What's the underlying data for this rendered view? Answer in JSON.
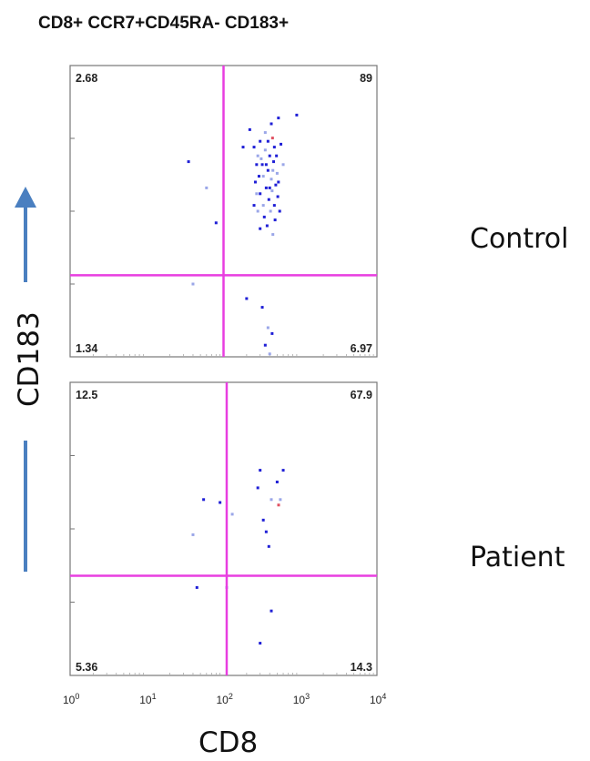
{
  "chart_data": {
    "type": "scatter",
    "title": "CD8+ CCR7+CD45RA- CD183+",
    "xlabel": "CD8",
    "ylabel": "CD183",
    "x_scale": "log",
    "xlim": [
      1,
      10000
    ],
    "x_ticks": [
      {
        "base": "10",
        "exp": "0"
      },
      {
        "base": "10",
        "exp": "1"
      },
      {
        "base": "10",
        "exp": "2"
      },
      {
        "base": "10",
        "exp": "3"
      },
      {
        "base": "10",
        "exp": "4"
      }
    ],
    "colors": {
      "gate": "#e83ee0",
      "arrow": "#4a7fc0",
      "event_main": "#1f1fd6",
      "event_light": "#9aa6e8",
      "event_red": "#e05060",
      "frame": "#777777"
    },
    "panels": [
      {
        "group": "Control",
        "gate_x": 100,
        "gate_y_fraction": 0.28,
        "quadrants": {
          "top_left": "2.68",
          "top_right": "89",
          "bottom_left": "1.34",
          "bottom_right": "6.97"
        },
        "points": [
          {
            "x": 220,
            "y": 0.78
          },
          {
            "x": 250,
            "y": 0.72
          },
          {
            "x": 280,
            "y": 0.69
          },
          {
            "x": 300,
            "y": 0.74
          },
          {
            "x": 320,
            "y": 0.66
          },
          {
            "x": 350,
            "y": 0.71
          },
          {
            "x": 380,
            "y": 0.64
          },
          {
            "x": 400,
            "y": 0.69
          },
          {
            "x": 420,
            "y": 0.61
          },
          {
            "x": 450,
            "y": 0.67
          },
          {
            "x": 480,
            "y": 0.59
          },
          {
            "x": 500,
            "y": 0.63
          },
          {
            "x": 260,
            "y": 0.6
          },
          {
            "x": 300,
            "y": 0.56
          },
          {
            "x": 330,
            "y": 0.62
          },
          {
            "x": 360,
            "y": 0.58
          },
          {
            "x": 390,
            "y": 0.54
          },
          {
            "x": 430,
            "y": 0.57
          },
          {
            "x": 460,
            "y": 0.52
          },
          {
            "x": 510,
            "y": 0.55
          },
          {
            "x": 280,
            "y": 0.5
          },
          {
            "x": 340,
            "y": 0.48
          },
          {
            "x": 370,
            "y": 0.45
          },
          {
            "x": 410,
            "y": 0.5
          },
          {
            "x": 470,
            "y": 0.47
          },
          {
            "x": 300,
            "y": 0.44
          },
          {
            "x": 440,
            "y": 0.42
          },
          {
            "x": 520,
            "y": 0.6
          },
          {
            "x": 270,
            "y": 0.66
          },
          {
            "x": 350,
            "y": 0.77
          },
          {
            "x": 420,
            "y": 0.8
          },
          {
            "x": 560,
            "y": 0.73
          },
          {
            "x": 600,
            "y": 0.66
          },
          {
            "x": 540,
            "y": 0.5
          },
          {
            "x": 250,
            "y": 0.52
          },
          {
            "x": 330,
            "y": 0.52
          },
          {
            "x": 380,
            "y": 0.74
          },
          {
            "x": 460,
            "y": 0.72
          },
          {
            "x": 310,
            "y": 0.68
          },
          {
            "x": 490,
            "y": 0.69
          },
          {
            "x": 290,
            "y": 0.62
          },
          {
            "x": 440,
            "y": 0.64
          },
          {
            "x": 360,
            "y": 0.66
          },
          {
            "x": 400,
            "y": 0.58
          },
          {
            "x": 270,
            "y": 0.56
          },
          {
            "x": 520,
            "y": 0.82
          },
          {
            "x": 900,
            "y": 0.83
          },
          {
            "x": 60,
            "y": 0.58
          },
          {
            "x": 35,
            "y": 0.67
          },
          {
            "x": 80,
            "y": 0.46
          },
          {
            "x": 40,
            "y": 0.25
          },
          {
            "x": 200,
            "y": 0.2
          },
          {
            "x": 320,
            "y": 0.17
          },
          {
            "x": 380,
            "y": 0.1
          },
          {
            "x": 430,
            "y": 0.08
          },
          {
            "x": 350,
            "y": 0.04
          },
          {
            "x": 400,
            "y": 0.01
          },
          {
            "x": 180,
            "y": 0.72
          }
        ]
      },
      {
        "group": "Patient",
        "gate_x": 110,
        "gate_y_fraction": 0.34,
        "quadrants": {
          "top_left": "12.5",
          "top_right": "67.9",
          "bottom_left": "5.36",
          "bottom_right": "14.3"
        },
        "points": [
          {
            "x": 55,
            "y": 0.6
          },
          {
            "x": 90,
            "y": 0.59
          },
          {
            "x": 130,
            "y": 0.55
          },
          {
            "x": 280,
            "y": 0.64
          },
          {
            "x": 500,
            "y": 0.66
          },
          {
            "x": 550,
            "y": 0.6
          },
          {
            "x": 330,
            "y": 0.53
          },
          {
            "x": 360,
            "y": 0.49
          },
          {
            "x": 420,
            "y": 0.6
          },
          {
            "x": 300,
            "y": 0.7
          },
          {
            "x": 45,
            "y": 0.3
          },
          {
            "x": 110,
            "y": 0.3
          },
          {
            "x": 420,
            "y": 0.22
          },
          {
            "x": 300,
            "y": 0.11
          },
          {
            "x": 40,
            "y": 0.48
          },
          {
            "x": 600,
            "y": 0.7
          },
          {
            "x": 390,
            "y": 0.44
          }
        ]
      }
    ],
    "arrow_up": true
  }
}
